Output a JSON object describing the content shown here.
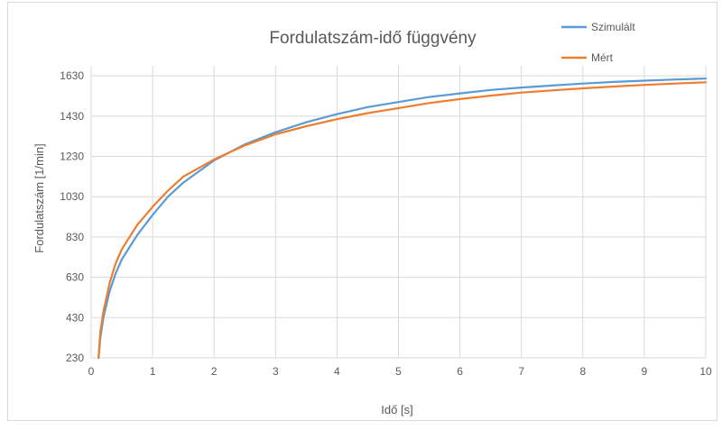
{
  "chart_data": {
    "type": "line",
    "title": "Fordulatszám-idő függvény",
    "xlabel": "Idő [s]",
    "ylabel": "Fordulatszám [1/min]",
    "xlim": [
      0,
      10
    ],
    "ylim": [
      230,
      1680
    ],
    "x_ticks": [
      "0",
      "1",
      "2",
      "3",
      "4",
      "5",
      "6",
      "7",
      "8",
      "9",
      "10"
    ],
    "y_ticks": [
      "230",
      "430",
      "630",
      "830",
      "1030",
      "1230",
      "1430",
      "1630"
    ],
    "grid": true,
    "legend_position": "top-right",
    "x": [
      0.12,
      0.15,
      0.2,
      0.3,
      0.4,
      0.5,
      0.75,
      1,
      1.25,
      1.5,
      2,
      2.5,
      3,
      3.5,
      4,
      4.5,
      5,
      5.5,
      6,
      6.5,
      7,
      7.5,
      8,
      8.5,
      9,
      9.5,
      10
    ],
    "series": [
      {
        "name": "Szimulált",
        "color": "#5b9bd5",
        "values": [
          230,
          330,
          430,
          560,
          650,
          720,
          840,
          940,
          1030,
          1100,
          1210,
          1290,
          1350,
          1400,
          1440,
          1475,
          1500,
          1525,
          1543,
          1560,
          1572,
          1582,
          1592,
          1600,
          1606,
          1612,
          1617
        ]
      },
      {
        "name": "Mért",
        "color": "#ed7d31",
        "values": [
          230,
          360,
          460,
          600,
          700,
          770,
          890,
          980,
          1060,
          1130,
          1215,
          1285,
          1340,
          1380,
          1415,
          1445,
          1470,
          1495,
          1515,
          1532,
          1547,
          1558,
          1568,
          1577,
          1585,
          1592,
          1598
        ]
      }
    ]
  }
}
